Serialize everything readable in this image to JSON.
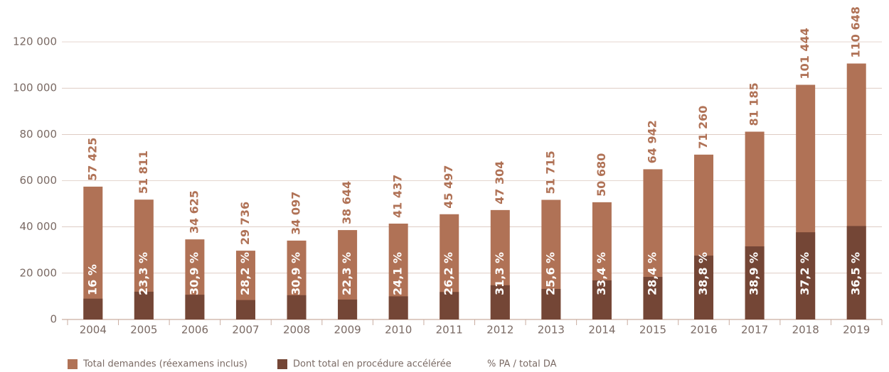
{
  "chart_data": {
    "type": "bar",
    "categories": [
      "2004",
      "2005",
      "2006",
      "2007",
      "2008",
      "2009",
      "2010",
      "2011",
      "2012",
      "2013",
      "2014",
      "2015",
      "2016",
      "2017",
      "2018",
      "2019"
    ],
    "series": [
      {
        "name": "Total demandes (réexamens inclus)",
        "color": "#b07256",
        "values": [
          57425,
          51811,
          34625,
          29736,
          34097,
          38644,
          41437,
          45497,
          47304,
          51715,
          50680,
          64942,
          71260,
          81185,
          101444,
          110648
        ],
        "value_labels": [
          "57 425",
          "51 811",
          "34 625",
          "29 736",
          "34 097",
          "38 644",
          "41 437",
          "45 497",
          "47 304",
          "51 715",
          "50 680",
          "64 942",
          "71 260",
          "81 185",
          "101 444",
          "110 648"
        ]
      },
      {
        "name": "Dont total en procédure accélérée",
        "color": "#744636",
        "values": [
          9000,
          12000,
          10700,
          8400,
          10500,
          8600,
          10000,
          11900,
          14800,
          13200,
          16900,
          18400,
          27600,
          31600,
          37700,
          40400
        ]
      },
      {
        "name": "% PA / total DA",
        "values": [
          16,
          23.3,
          30.9,
          28.2,
          30.9,
          22.3,
          24.1,
          26.2,
          31.3,
          25.6,
          33.4,
          28.4,
          38.8,
          38.9,
          37.2,
          36.5
        ],
        "value_labels": [
          "16 %",
          "23,3 %",
          "30,9 %",
          "28,2 %",
          "30,9 %",
          "22,3 %",
          "24,1 %",
          "26,2 %",
          "31,3 %",
          "25,6 %",
          "33,4 %",
          "28,4 %",
          "38,8 %",
          "38,9 %",
          "37,2 %",
          "36,5 %"
        ]
      }
    ],
    "ylim": [
      0,
      120000
    ],
    "yticks": [
      0,
      {
        "value": 20000,
        "label": "20 000"
      },
      {
        "value": 40000,
        "label": "40 000"
      },
      {
        "value": 60000,
        "label": "60 000"
      },
      {
        "value": 80000,
        "label": "80 000"
      },
      {
        "value": 100000,
        "label": "100 000"
      },
      {
        "value": 120000,
        "label": "120 000"
      }
    ],
    "grid": true
  }
}
